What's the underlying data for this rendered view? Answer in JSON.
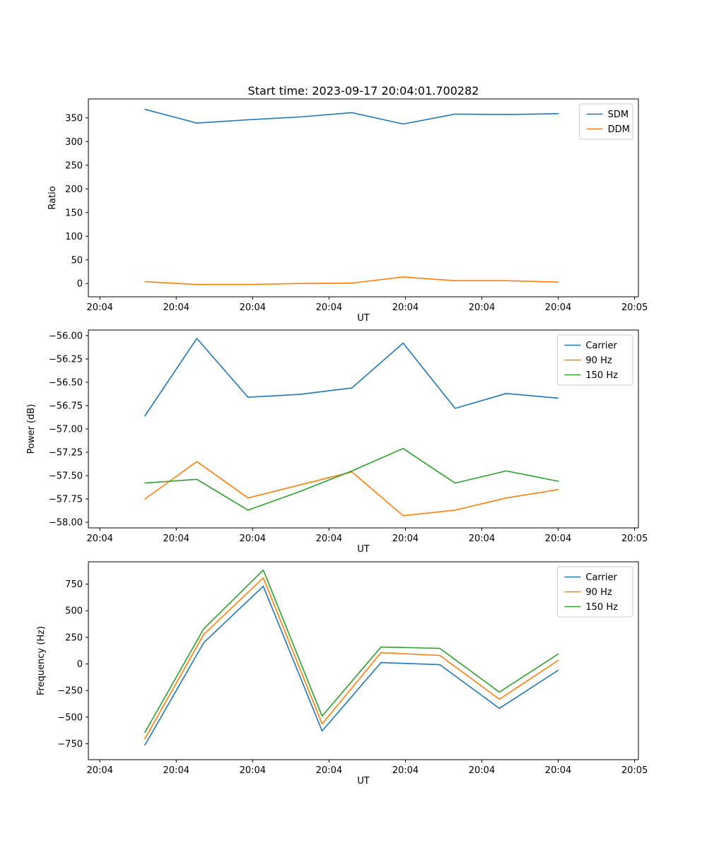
{
  "figure": {
    "background": "#ffffff",
    "spine_color": "#000000",
    "palette": {
      "blue": "#1f77b4",
      "orange": "#ff7f0e",
      "green": "#2ca02c"
    }
  },
  "chart_data": [
    {
      "type": "line",
      "title": "Start time: 2023-09-17 20:04:01.700282",
      "xlabel": "UT",
      "ylabel": "Ratio",
      "xlim": [
        -0.15,
        7.05
      ],
      "ylim": [
        -28,
        390
      ],
      "grid": false,
      "legend_position": "upper right",
      "xticks": {
        "values": [
          0,
          1,
          2,
          3,
          4,
          5,
          6,
          7
        ],
        "labels": [
          "20:04",
          "20:04",
          "20:04",
          "20:04",
          "20:04",
          "20:04",
          "20:04",
          "20:05"
        ]
      },
      "yticks": {
        "values": [
          0,
          50,
          100,
          150,
          200,
          250,
          300,
          350
        ],
        "labels": [
          "0",
          "50",
          "100",
          "150",
          "200",
          "250",
          "300",
          "350"
        ]
      },
      "x": [
        0.59,
        1.27,
        1.94,
        2.62,
        3.3,
        3.97,
        4.65,
        5.32,
        6.0
      ],
      "series": [
        {
          "name": "SDM",
          "color": "#1f77b4",
          "values": [
            368,
            339,
            346,
            352,
            361,
            337,
            358,
            357,
            359
          ]
        },
        {
          "name": "DDM",
          "color": "#ff7f0e",
          "values": [
            4,
            -2,
            -2,
            0,
            1,
            14,
            6,
            6,
            3
          ]
        }
      ]
    },
    {
      "type": "line",
      "title": "",
      "xlabel": "UT",
      "ylabel": "Power (dB)",
      "xlim": [
        -0.15,
        7.05
      ],
      "ylim": [
        -58.06,
        -55.94
      ],
      "grid": false,
      "legend_position": "upper right",
      "xticks": {
        "values": [
          0,
          1,
          2,
          3,
          4,
          5,
          6,
          7
        ],
        "labels": [
          "20:04",
          "20:04",
          "20:04",
          "20:04",
          "20:04",
          "20:04",
          "20:04",
          "20:05"
        ]
      },
      "yticks": {
        "values": [
          -58.0,
          -57.75,
          -57.5,
          -57.25,
          -57.0,
          -56.75,
          -56.5,
          -56.25,
          -56.0
        ],
        "labels": [
          "−58.00",
          "−57.75",
          "−57.50",
          "−57.25",
          "−57.00",
          "−56.75",
          "−56.50",
          "−56.25",
          "−56.00"
        ]
      },
      "x": [
        0.59,
        1.27,
        1.94,
        2.62,
        3.3,
        3.97,
        4.65,
        5.32,
        6.0
      ],
      "series": [
        {
          "name": "Carrier",
          "color": "#1f77b4",
          "values": [
            -56.86,
            -56.03,
            -56.66,
            -56.63,
            -56.56,
            -56.08,
            -56.78,
            -56.62,
            -56.67
          ]
        },
        {
          "name": "90 Hz",
          "color": "#ff7f0e",
          "values": [
            -57.75,
            -57.35,
            -57.74,
            -57.6,
            -57.46,
            -57.93,
            -57.87,
            -57.74,
            -57.65
          ]
        },
        {
          "name": "150 Hz",
          "color": "#2ca02c",
          "values": [
            -57.58,
            -57.54,
            -57.87,
            -57.67,
            -57.45,
            -57.21,
            -57.58,
            -57.45,
            -57.56
          ]
        }
      ]
    },
    {
      "type": "line",
      "title": "",
      "xlabel": "UT",
      "ylabel": "Frequency (Hz)",
      "xlim": [
        -0.15,
        7.05
      ],
      "ylim": [
        -900,
        960
      ],
      "grid": false,
      "legend_position": "upper right",
      "xticks": {
        "values": [
          0,
          1,
          2,
          3,
          4,
          5,
          6,
          7
        ],
        "labels": [
          "20:04",
          "20:04",
          "20:04",
          "20:04",
          "20:04",
          "20:04",
          "20:04",
          "20:05"
        ]
      },
      "yticks": {
        "values": [
          -750,
          -500,
          -250,
          0,
          250,
          500,
          750
        ],
        "labels": [
          "−750",
          "−500",
          "−250",
          "0",
          "250",
          "500",
          "750"
        ]
      },
      "x": [
        0.59,
        1.36,
        2.14,
        2.91,
        3.68,
        4.45,
        5.23,
        6.0
      ],
      "series": [
        {
          "name": "Carrier",
          "color": "#1f77b4",
          "values": [
            -763,
            200,
            730,
            -630,
            13,
            -7,
            -418,
            -60
          ]
        },
        {
          "name": "90 Hz",
          "color": "#ff7f0e",
          "values": [
            -703,
            278,
            809,
            -564,
            106,
            80,
            -332,
            33
          ]
        },
        {
          "name": "150 Hz",
          "color": "#2ca02c",
          "values": [
            -643,
            331,
            882,
            -491,
            159,
            146,
            -265,
            93
          ]
        }
      ]
    }
  ]
}
